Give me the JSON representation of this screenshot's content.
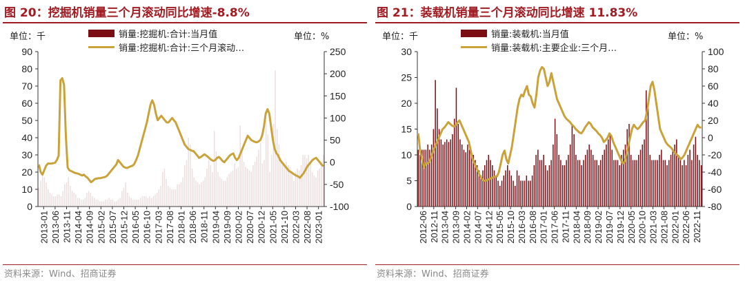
{
  "charts": [
    {
      "title": "图 20：挖掘机销量三个月滚动同比增速-8.8%",
      "unit_left": "单位：千",
      "unit_right": "单位：%",
      "source": "资料来源：Wind、招商证券"
    },
    {
      "title": "图 21：装载机销量三个月滚动同比增速 11.83%",
      "unit_left": "单位：千",
      "unit_right": "单位：%",
      "source": "资料来源：Wind、招商证券"
    }
  ],
  "chart_data": [
    {
      "type": "bar",
      "y_left_ticks": [
        0,
        10,
        20,
        30,
        40,
        50,
        60,
        70,
        80,
        90
      ],
      "y_left_range": [
        0,
        90
      ],
      "y_right_ticks": [
        -100,
        -50,
        0,
        50,
        100,
        150,
        200,
        250
      ],
      "y_right_range": [
        -100,
        250
      ],
      "x_ticks": [
        "2013-01",
        "2013-06",
        "2013-11",
        "2014-04",
        "2014-09",
        "2015-02",
        "2015-07",
        "2015-12",
        "2016-05",
        "2016-10",
        "2017-03",
        "2017-08",
        "2018-01",
        "2018-06",
        "2018-11",
        "2019-04",
        "2019-09",
        "2020-02",
        "2020-07",
        "2020-12",
        "2021-05",
        "2021-10",
        "2022-03",
        "2022-08",
        "2023-01"
      ],
      "series": [
        {
          "name": "销量:挖掘机:合计:当月值",
          "kind": "bar",
          "axis": "left",
          "color": "#7b0e14",
          "values": [
            11,
            15,
            19,
            17,
            14,
            10,
            8,
            7,
            6,
            6,
            7,
            7,
            6,
            9,
            13,
            14,
            17,
            12,
            9,
            8,
            7,
            5,
            5,
            4,
            4,
            5,
            8,
            9,
            8,
            6,
            5,
            4,
            4,
            3,
            3,
            3,
            4,
            4,
            5,
            4,
            4,
            3,
            3,
            4,
            5,
            9,
            11,
            14,
            8,
            6,
            5,
            4,
            4,
            4,
            4,
            5,
            6,
            6,
            6,
            5,
            6,
            5,
            6,
            7,
            8,
            10,
            12,
            20,
            22,
            16,
            12,
            11,
            10,
            10,
            10,
            13,
            13,
            14,
            17,
            24,
            27,
            40,
            36,
            22,
            17,
            15,
            14,
            13,
            14,
            15,
            17,
            22,
            27,
            24,
            20,
            44,
            32,
            20,
            17,
            16,
            15,
            15,
            17,
            19,
            20,
            21,
            25,
            22,
            23,
            47,
            32,
            26,
            23,
            22,
            21,
            20,
            24,
            26,
            29,
            33,
            37,
            25,
            27,
            50,
            42,
            20,
            30,
            48,
            79,
            45,
            36,
            28,
            26,
            25,
            26,
            24,
            23,
            19,
            15,
            20,
            22,
            21,
            24,
            30,
            30,
            28,
            30,
            25,
            20,
            18,
            17,
            21,
            22,
            26,
            30
          ]
        },
        {
          "name": "销量:挖掘机:合计:三个月滚动…",
          "kind": "line",
          "axis": "right",
          "color": "#c9a23a",
          "values": [
            -5,
            -22,
            -28,
            -18,
            -8,
            -3,
            -3,
            -3,
            -2,
            -1,
            5,
            15,
            185,
            190,
            175,
            60,
            -12,
            -18,
            -20,
            -22,
            -24,
            -25,
            -26,
            -28,
            -30,
            -28,
            -32,
            -35,
            -40,
            -45,
            -42,
            -38,
            -37,
            -36,
            -36,
            -35,
            -34,
            -33,
            -30,
            -25,
            -20,
            -15,
            -10,
            -5,
            5,
            0,
            -5,
            -10,
            -12,
            -13,
            -11,
            -9,
            -8,
            -4,
            5,
            15,
            30,
            45,
            60,
            75,
            90,
            110,
            130,
            140,
            130,
            110,
            95,
            100,
            105,
            100,
            95,
            90,
            90,
            95,
            100,
            95,
            90,
            80,
            70,
            60,
            50,
            40,
            35,
            30,
            28,
            26,
            25,
            20,
            15,
            10,
            12,
            15,
            18,
            15,
            12,
            8,
            5,
            3,
            5,
            10,
            12,
            8,
            3,
            0,
            5,
            10,
            15,
            18,
            20,
            10,
            5,
            10,
            20,
            30,
            40,
            50,
            60,
            55,
            50,
            48,
            46,
            45,
            47,
            50,
            60,
            80,
            110,
            120,
            110,
            80,
            50,
            30,
            20,
            15,
            5,
            0,
            -5,
            -10,
            -15,
            -20,
            -22,
            -25,
            -28,
            -30,
            -32,
            -35,
            -30,
            -25,
            -18,
            -10,
            -5,
            0,
            5,
            8,
            10,
            5,
            0,
            -5,
            -9
          ]
        }
      ]
    },
    {
      "type": "bar",
      "y_left_ticks": [
        0,
        5,
        10,
        15,
        20,
        25,
        30
      ],
      "y_left_range": [
        0,
        30
      ],
      "y_right_ticks": [
        -80,
        -60,
        -40,
        -20,
        0,
        20,
        40,
        60,
        80,
        100
      ],
      "y_right_range": [
        -80,
        100
      ],
      "x_ticks": [
        "2012-06",
        "2012-11",
        "2013-04",
        "2013-09",
        "2014-02",
        "2014-07",
        "2014-12",
        "2015-05",
        "2015-10",
        "2016-03",
        "2016-08",
        "2017-01",
        "2017-06",
        "2017-11",
        "2018-04",
        "2018-09",
        "2019-02",
        "2019-07",
        "2019-12",
        "2020-05",
        "2020-10",
        "2021-03",
        "2021-08",
        "2022-01",
        "2022-06",
        "2022-11"
      ],
      "series": [
        {
          "name": "销量:装载机:当月值",
          "kind": "bar",
          "axis": "left",
          "color": "#7b0e14",
          "values": [
            11,
            10,
            11,
            11,
            11,
            12,
            11,
            12,
            15,
            24.5,
            19,
            15,
            13,
            12,
            12.5,
            13,
            12.5,
            13,
            14,
            17,
            23,
            16,
            13,
            12,
            11,
            10.5,
            12,
            11,
            10,
            10,
            9,
            8,
            7,
            6,
            7,
            8,
            9,
            10,
            9,
            8,
            7,
            6,
            5,
            4,
            5,
            6,
            7,
            8,
            7,
            6,
            5,
            4,
            7,
            6,
            5,
            5,
            5,
            6,
            5,
            5,
            6,
            8,
            10,
            11,
            9,
            9,
            10,
            8,
            7,
            8,
            9,
            12,
            17,
            14,
            10,
            9,
            8,
            8,
            9,
            10,
            12,
            16,
            14,
            10,
            9,
            9,
            8,
            9,
            10,
            11,
            12,
            11,
            10,
            9,
            9,
            8,
            9,
            10,
            11,
            12,
            13,
            14,
            11,
            9,
            9,
            9,
            8,
            10,
            11,
            12,
            15,
            16,
            10,
            9,
            9,
            9,
            10,
            11,
            12,
            13,
            22.5,
            19,
            10,
            9,
            9,
            9,
            9,
            10,
            11,
            9,
            9,
            8,
            9,
            10,
            11,
            12,
            13,
            10,
            9,
            8,
            9,
            8,
            10,
            11,
            9,
            12,
            13.5,
            10,
            9,
            8
          ]
        },
        {
          "name": "销量:装载机:主要企业:三个月…",
          "kind": "line",
          "axis": "right",
          "color": "#c9a23a",
          "values": [
            5,
            -15,
            -25,
            -35,
            -30,
            -30,
            -28,
            -22,
            -15,
            -10,
            -5,
            0,
            5,
            10,
            12,
            15,
            18,
            16,
            14,
            13,
            15,
            18,
            20,
            15,
            10,
            5,
            0,
            -5,
            -15,
            -25,
            -30,
            -35,
            -40,
            -45,
            -48,
            -50,
            -50,
            -49,
            -48,
            -47,
            -46,
            -45,
            -45,
            -40,
            -30,
            -20,
            -15,
            -25,
            -30,
            -20,
            -10,
            5,
            20,
            35,
            45,
            50,
            48,
            55,
            60,
            50,
            48,
            40,
            35,
            50,
            70,
            78,
            82,
            80,
            70,
            60,
            65,
            75,
            65,
            55,
            45,
            40,
            35,
            30,
            25,
            22,
            20,
            18,
            15,
            13,
            10,
            8,
            6,
            5,
            8,
            12,
            15,
            18,
            16,
            12,
            10,
            8,
            5,
            3,
            0,
            -5,
            -3,
            0,
            5,
            2,
            -5,
            -10,
            -15,
            -20,
            -25,
            -30,
            -28,
            -20,
            -10,
            0,
            10,
            15,
            12,
            10,
            12,
            15,
            18,
            20,
            30,
            45,
            60,
            65,
            55,
            40,
            25,
            10,
            5,
            0,
            -5,
            -8,
            -10,
            -12,
            -15,
            -18,
            -20,
            -22,
            -25,
            -23,
            -20,
            -15,
            -10,
            -5,
            0,
            5,
            10,
            15,
            12,
            11.83
          ]
        }
      ]
    }
  ]
}
